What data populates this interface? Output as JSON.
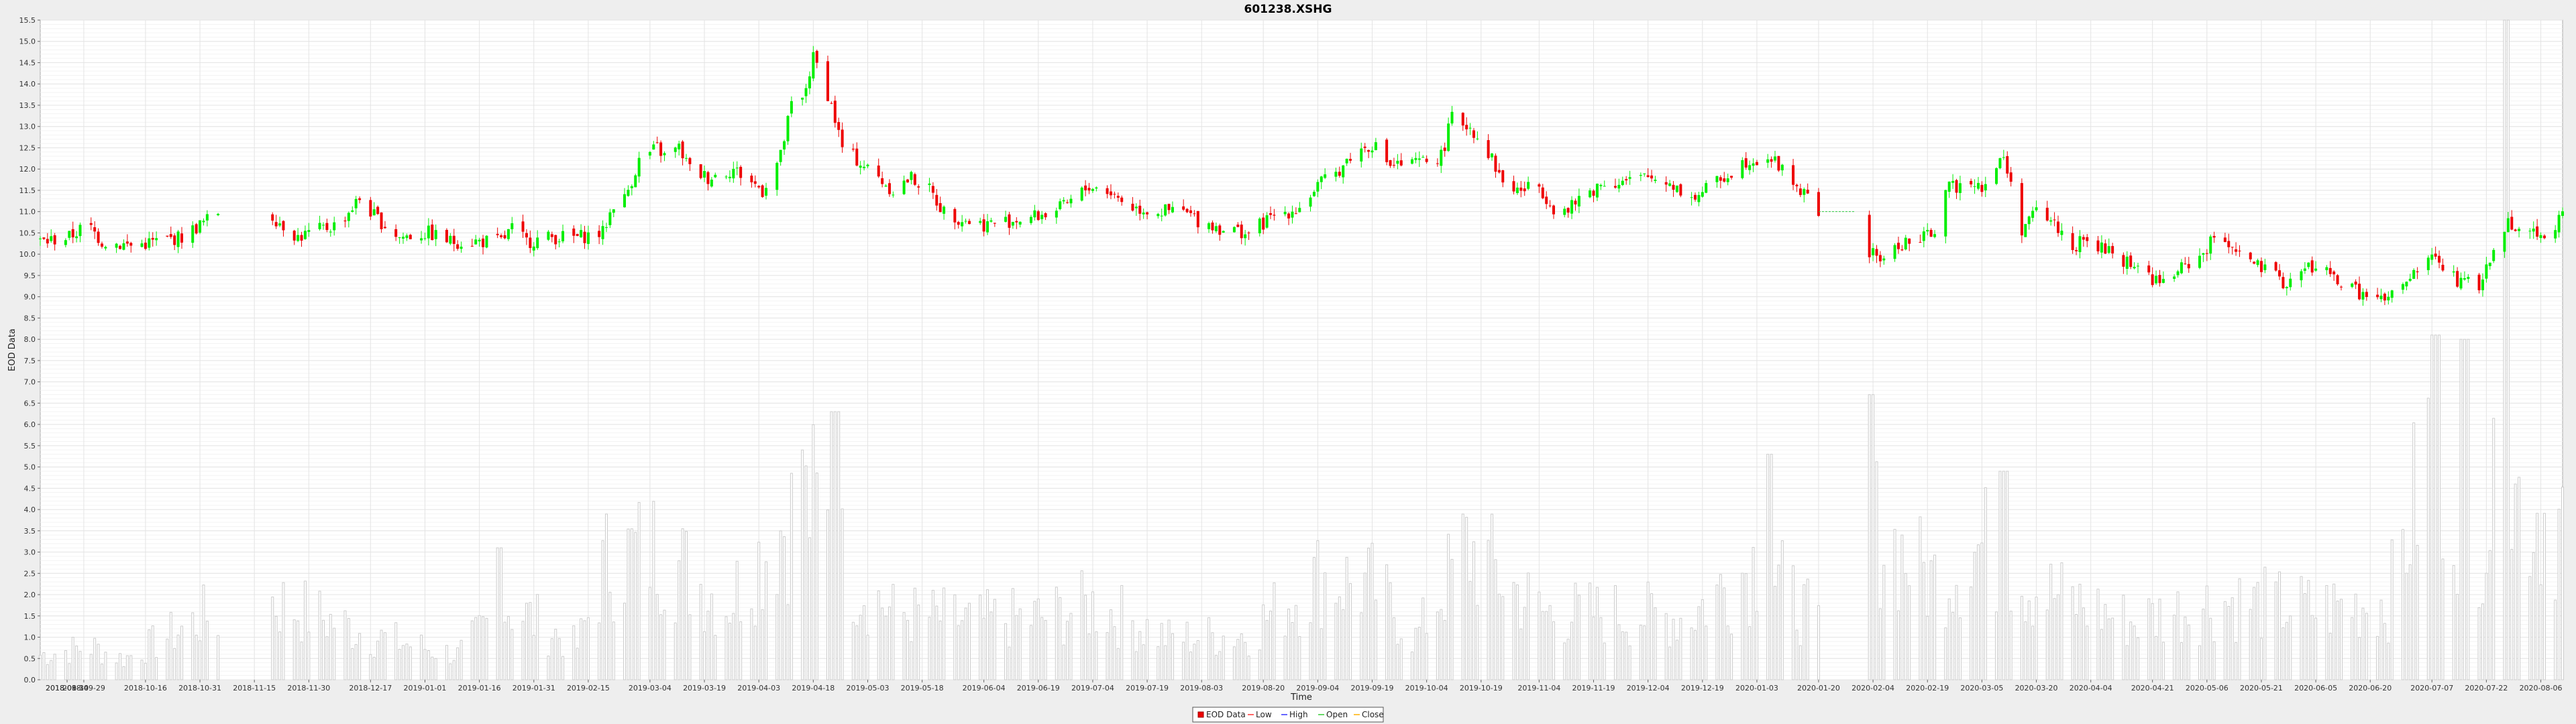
{
  "chart_data": {
    "type": "candlestick",
    "title": "601238.XSHG",
    "xlabel": "Time",
    "ylabel": "EOD Data",
    "ylim": [
      0.0,
      15.5
    ],
    "yticks": [
      "0.0",
      "0.5",
      "1.0",
      "1.5",
      "2.0",
      "2.5",
      "3.0",
      "3.5",
      "4.0",
      "4.5",
      "5.0",
      "5.5",
      "6.0",
      "6.5",
      "7.0",
      "7.5",
      "8.0",
      "8.5",
      "9.0",
      "9.5",
      "10.0",
      "10.5",
      "11.0",
      "11.5",
      "12.0",
      "12.5",
      "13.0",
      "13.5",
      "14.0",
      "14.5",
      "15.0",
      "15.5"
    ],
    "xlim": [
      "2018-09-17",
      "2020-08-12"
    ],
    "xticks": [
      "2018-08-30",
      "2018-09-14",
      "2018-09-29",
      "2018-10-16",
      "2018-10-31",
      "2018-11-15",
      "2018-11-30",
      "2018-12-17",
      "2019-01-01",
      "2019-01-16",
      "2019-01-31",
      "2019-02-15",
      "2019-03-04",
      "2019-03-19",
      "2019-04-03",
      "2019-04-18",
      "2019-05-03",
      "2019-05-18",
      "2019-06-04",
      "2019-06-19",
      "2019-07-04",
      "2019-07-19",
      "2019-08-03",
      "2019-08-20",
      "2019-09-04",
      "2019-09-19",
      "2019-10-04",
      "2019-10-19",
      "2019-11-04",
      "2019-11-19",
      "2019-12-04",
      "2019-12-19",
      "2020-01-03",
      "2020-01-20",
      "2020-02-04",
      "2020-02-19",
      "2020-03-05",
      "2020-03-20",
      "2020-04-04",
      "2020-04-21",
      "2020-05-06",
      "2020-05-21",
      "2020-06-05",
      "2020-06-20",
      "2020-07-07",
      "2020-07-22",
      "2020-08-06"
    ],
    "grid": true,
    "legend_position": "bottom",
    "legend": [
      "EOD Data",
      "Low",
      "High",
      "Open",
      "Close"
    ],
    "colors": {
      "up": "#00ee00",
      "down": "#ee0000",
      "volume": "#d8d8d8",
      "grid": "#e4e4e4",
      "plot_bg": "#ffffff",
      "page_bg": "#eeeeee",
      "close_line": "#ff8c00"
    },
    "close_anchors": [
      [
        "2018-09-18",
        10.3
      ],
      [
        "2018-09-25",
        10.4
      ],
      [
        "2018-09-30",
        10.7
      ],
      [
        "2018-10-04",
        10.3
      ],
      [
        "2018-10-12",
        10.2
      ],
      [
        "2018-10-19",
        10.3
      ],
      [
        "2018-10-26",
        10.4
      ],
      [
        "2018-11-02",
        10.8
      ],
      [
        "2018-11-05",
        11.0
      ],
      [
        "2018-11-20",
        10.9
      ],
      [
        "2018-11-27",
        10.4
      ],
      [
        "2018-12-04",
        10.6
      ],
      [
        "2018-12-08",
        10.7
      ],
      [
        "2018-12-14",
        11.3
      ],
      [
        "2018-12-18",
        10.9
      ],
      [
        "2018-12-25",
        10.4
      ],
      [
        "2019-01-02",
        10.5
      ],
      [
        "2019-01-08",
        10.3
      ],
      [
        "2019-01-15",
        10.3
      ],
      [
        "2019-01-22",
        10.3
      ],
      [
        "2019-01-25",
        10.6
      ],
      [
        "2019-01-29",
        10.3
      ],
      [
        "2019-02-05",
        10.4
      ],
      [
        "2019-02-12",
        10.4
      ],
      [
        "2019-02-19",
        10.5
      ],
      [
        "2019-02-22",
        11.2
      ],
      [
        "2019-02-25",
        11.3
      ],
      [
        "2019-03-01",
        12.2
      ],
      [
        "2019-03-06",
        12.5
      ],
      [
        "2019-03-08",
        12.3
      ],
      [
        "2019-03-12",
        12.5
      ],
      [
        "2019-03-15",
        12.0
      ],
      [
        "2019-03-20",
        11.8
      ],
      [
        "2019-03-27",
        12.0
      ],
      [
        "2019-04-01",
        11.7
      ],
      [
        "2019-04-04",
        11.5
      ],
      [
        "2019-04-09",
        12.3
      ],
      [
        "2019-04-12",
        13.5
      ],
      [
        "2019-04-15",
        13.6
      ],
      [
        "2019-04-18",
        14.6
      ],
      [
        "2019-04-20",
        14.3
      ],
      [
        "2019-04-23",
        13.5
      ],
      [
        "2019-04-26",
        12.5
      ],
      [
        "2019-05-06",
        11.8
      ],
      [
        "2019-05-10",
        11.5
      ],
      [
        "2019-05-15",
        11.8
      ],
      [
        "2019-05-20",
        11.5
      ],
      [
        "2019-05-24",
        11.0
      ],
      [
        "2019-05-30",
        10.8
      ],
      [
        "2019-06-04",
        10.7
      ],
      [
        "2019-06-12",
        10.8
      ],
      [
        "2019-06-19",
        10.9
      ],
      [
        "2019-06-26",
        11.1
      ],
      [
        "2019-07-03",
        11.6
      ],
      [
        "2019-07-08",
        11.5
      ],
      [
        "2019-07-15",
        11.1
      ],
      [
        "2019-07-22",
        11.0
      ],
      [
        "2019-07-29",
        11.0
      ],
      [
        "2019-08-02",
        10.8
      ],
      [
        "2019-08-09",
        10.6
      ],
      [
        "2019-08-16",
        10.5
      ],
      [
        "2019-08-23",
        10.9
      ],
      [
        "2019-08-30",
        11.1
      ],
      [
        "2019-09-04",
        11.6
      ],
      [
        "2019-09-09",
        11.9
      ],
      [
        "2019-09-13",
        12.3
      ],
      [
        "2019-09-19",
        12.6
      ],
      [
        "2019-09-24",
        12.1
      ],
      [
        "2019-09-30",
        12.1
      ],
      [
        "2019-10-08",
        12.3
      ],
      [
        "2019-10-11",
        13.2
      ],
      [
        "2019-10-16",
        13.0
      ],
      [
        "2019-10-21",
        12.4
      ],
      [
        "2019-10-25",
        11.7
      ],
      [
        "2019-10-29",
        11.5
      ],
      [
        "2019-11-04",
        11.6
      ],
      [
        "2019-11-08",
        11.1
      ],
      [
        "2019-11-12",
        11.0
      ],
      [
        "2019-11-15",
        11.3
      ],
      [
        "2019-11-22",
        11.7
      ],
      [
        "2019-11-28",
        11.7
      ],
      [
        "2019-12-04",
        11.8
      ],
      [
        "2019-12-10",
        11.7
      ],
      [
        "2019-12-16",
        11.3
      ],
      [
        "2019-12-23",
        11.7
      ],
      [
        "2019-12-31",
        12.2
      ],
      [
        "2020-01-06",
        12.3
      ],
      [
        "2020-01-10",
        12.0
      ],
      [
        "2020-01-17",
        11.3
      ],
      [
        "2020-01-20",
        11.0
      ],
      [
        "2020-02-03",
        10.0
      ],
      [
        "2020-02-07",
        9.9
      ],
      [
        "2020-02-13",
        10.3
      ],
      [
        "2020-02-17",
        10.3
      ],
      [
        "2020-02-21",
        10.6
      ],
      [
        "2020-02-24",
        11.5
      ],
      [
        "2020-02-27",
        11.6
      ],
      [
        "2020-03-02",
        11.8
      ],
      [
        "2020-03-05",
        11.6
      ],
      [
        "2020-03-09",
        12.0
      ],
      [
        "2020-03-11",
        12.3
      ],
      [
        "2020-03-13",
        11.6
      ],
      [
        "2020-03-16",
        10.6
      ],
      [
        "2020-03-20",
        11.0
      ],
      [
        "2020-03-24",
        10.8
      ],
      [
        "2020-03-30",
        10.2
      ],
      [
        "2020-04-03",
        10.3
      ],
      [
        "2020-04-10",
        10.0
      ],
      [
        "2020-04-17",
        9.7
      ],
      [
        "2020-04-23",
        9.3
      ],
      [
        "2020-04-28",
        9.6
      ],
      [
        "2020-05-06",
        10.1
      ],
      [
        "2020-05-08",
        10.4
      ],
      [
        "2020-05-12",
        10.3
      ],
      [
        "2020-05-18",
        9.8
      ],
      [
        "2020-05-22",
        9.6
      ],
      [
        "2020-05-28",
        9.3
      ],
      [
        "2020-06-03",
        9.7
      ],
      [
        "2020-06-08",
        9.6
      ],
      [
        "2020-06-12",
        9.3
      ],
      [
        "2020-06-19",
        9.0
      ],
      [
        "2020-06-24",
        8.9
      ],
      [
        "2020-06-29",
        9.2
      ],
      [
        "2020-07-03",
        9.6
      ],
      [
        "2020-07-07",
        10.0
      ],
      [
        "2020-07-10",
        9.7
      ],
      [
        "2020-07-15",
        9.3
      ],
      [
        "2020-07-20",
        9.3
      ],
      [
        "2020-07-24",
        10.0
      ],
      [
        "2020-07-28",
        10.8
      ],
      [
        "2020-08-03",
        10.5
      ],
      [
        "2020-08-07",
        10.5
      ],
      [
        "2020-08-12",
        10.9
      ]
    ],
    "gaps": [
      [
        "2018-11-06",
        "2018-11-19"
      ],
      [
        "2020-01-21",
        "2020-02-02"
      ]
    ],
    "volume_profile": [
      [
        "2018-09-17",
        0.6
      ],
      [
        "2018-10-01",
        0.8
      ],
      [
        "2018-10-10",
        0.5
      ],
      [
        "2018-11-01",
        1.5
      ],
      [
        "2018-11-05",
        1.5
      ],
      [
        "2018-11-20",
        1.9
      ],
      [
        "2018-12-10",
        1.3
      ],
      [
        "2018-12-20",
        1.0
      ],
      [
        "2019-01-10",
        0.6
      ],
      [
        "2019-01-24",
        1.8
      ],
      [
        "2019-02-12",
        0.8
      ],
      [
        "2019-02-20",
        2.8
      ],
      [
        "2019-03-06",
        3.2
      ],
      [
        "2019-03-25",
        1.8
      ],
      [
        "2019-04-10",
        3.8
      ],
      [
        "2019-04-18",
        4.2
      ],
      [
        "2019-04-28",
        2.6
      ],
      [
        "2019-05-10",
        1.6
      ],
      [
        "2019-06-01",
        1.4
      ],
      [
        "2019-06-20",
        1.5
      ],
      [
        "2019-07-05",
        1.8
      ],
      [
        "2019-07-25",
        1.0
      ],
      [
        "2019-08-15",
        1.1
      ],
      [
        "2019-09-05",
        2.5
      ],
      [
        "2019-09-20",
        2.2
      ],
      [
        "2019-10-01",
        1.0
      ],
      [
        "2019-10-15",
        3.2
      ],
      [
        "2019-11-05",
        1.6
      ],
      [
        "2019-11-25",
        1.6
      ],
      [
        "2019-12-15",
        1.5
      ],
      [
        "2020-01-03",
        2.9
      ],
      [
        "2020-01-20",
        1.3
      ],
      [
        "2020-02-03",
        3.8
      ],
      [
        "2020-02-20",
        2.4
      ],
      [
        "2020-03-05",
        3.2
      ],
      [
        "2020-03-20",
        2.2
      ],
      [
        "2020-04-15",
        1.4
      ],
      [
        "2020-05-10",
        1.9
      ],
      [
        "2020-06-05",
        1.7
      ],
      [
        "2020-06-25",
        1.9
      ],
      [
        "2020-07-07",
        5.8
      ],
      [
        "2020-07-18",
        3.5
      ],
      [
        "2020-07-28",
        4.5
      ],
      [
        "2020-08-12",
        3.8
      ]
    ],
    "volume_spikes": [
      [
        "2018-11-15",
        2.7
      ],
      [
        "2019-01-21",
        3.1
      ],
      [
        "2019-04-14",
        5.4
      ],
      [
        "2019-04-24",
        6.3
      ],
      [
        "2020-01-06",
        5.3
      ],
      [
        "2020-02-03",
        6.7
      ],
      [
        "2020-03-11",
        4.9
      ],
      [
        "2020-07-08",
        8.1
      ],
      [
        "2020-07-16",
        8.0
      ],
      [
        "2020-07-27",
        15.5
      ]
    ]
  }
}
